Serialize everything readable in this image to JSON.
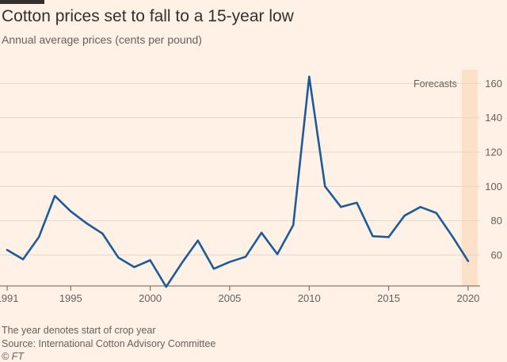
{
  "title": "Cotton prices set to fall to a 15-year low",
  "subtitle": "Annual average prices (cents per pound)",
  "notes": {
    "crop_year": "The year denotes start of crop year",
    "source": "Source: International Cotton Advisory Committee",
    "credit": "© FT"
  },
  "colors": {
    "background": "#fff1e5",
    "line": "#1d5b9a",
    "forecast_band": "#fde0c8",
    "grid": "#e2d6cc",
    "text": "#66605c",
    "title": "#33302e"
  },
  "chart_data": {
    "type": "line",
    "title": "Cotton prices set to fall to a 15-year low",
    "subtitle": "Annual average prices (cents per pound)",
    "x": [
      1991,
      1992,
      1993,
      1994,
      1995,
      1996,
      1997,
      1998,
      1999,
      2000,
      2001,
      2002,
      2003,
      2004,
      2005,
      2006,
      2007,
      2008,
      2009,
      2010,
      2011,
      2012,
      2013,
      2014,
      2015,
      2016,
      2017,
      2018,
      2019,
      2020
    ],
    "series": [
      {
        "values": [
          63,
          57.5,
          70.5,
          94.5,
          85.5,
          78.5,
          72.5,
          58.5,
          53,
          57,
          41.5,
          55.5,
          68.5,
          52,
          56,
          59,
          73,
          60.5,
          77.5,
          164,
          100,
          88,
          90.5,
          71,
          70.5,
          83,
          88,
          84.5,
          71,
          56.5
        ]
      }
    ],
    "annotation": "Forecasts",
    "forecast_range": [
      2019.6,
      2020.6
    ],
    "xticks": [
      1991,
      1995,
      2000,
      2005,
      2010,
      2015,
      2020
    ],
    "yticks": [
      60,
      80,
      100,
      120,
      140,
      160
    ],
    "xlim": [
      1990.85,
      2020.75
    ],
    "ylim": [
      42,
      168
    ],
    "xlabel": "",
    "ylabel": "",
    "grid": true,
    "y_axis_side": "right"
  }
}
